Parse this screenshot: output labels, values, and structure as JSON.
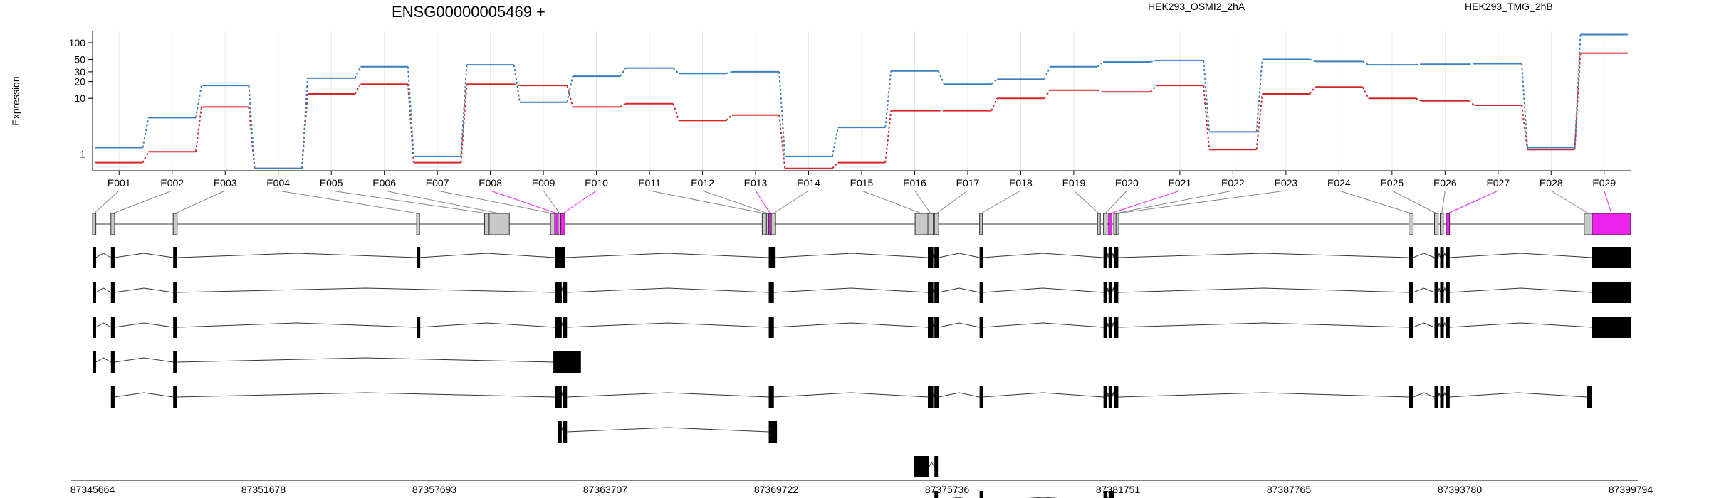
{
  "chart_data": {
    "type": "line",
    "title": "ENSG00000005469 +",
    "ylabel": "Expression",
    "yscale": "log",
    "ylim": [
      0.5,
      160
    ],
    "yticks": [
      1,
      10,
      20,
      30,
      50,
      100
    ],
    "ytick_labels": [
      "1",
      "10",
      "20",
      "30",
      "50",
      "100"
    ],
    "categories": [
      "E001",
      "E002",
      "E003",
      "E004",
      "E005",
      "E006",
      "E007",
      "E008",
      "E009",
      "E010",
      "E011",
      "E012",
      "E013",
      "E014",
      "E015",
      "E016",
      "E017",
      "E018",
      "E019",
      "E020",
      "E021",
      "E022",
      "E023",
      "E024",
      "E025",
      "E026",
      "E027",
      "E028",
      "E029"
    ],
    "series": [
      {
        "name": "HEK293_OSMI2_2hA",
        "color": "#d62728",
        "values": [
          0.7,
          1.1,
          7,
          0.55,
          12,
          18,
          0.7,
          18,
          17,
          7,
          8,
          4,
          5,
          0.55,
          0.7,
          6,
          6,
          10,
          14,
          13,
          17,
          1.2,
          12,
          16,
          10,
          9,
          7.5,
          1.2,
          65
        ]
      },
      {
        "name": "HEK293_TMG_2hB",
        "color": "#3a7ebf",
        "values": [
          1.3,
          4.5,
          17,
          0.55,
          23,
          37,
          0.9,
          40,
          8.5,
          25,
          35,
          28,
          30,
          0.9,
          3,
          31,
          18,
          22,
          37,
          45,
          48,
          2.5,
          50,
          46,
          40,
          41,
          42,
          1.3,
          140
        ]
      }
    ],
    "highlight_color": "#ee22ee",
    "exon_fill": "#c8c8c8",
    "highlighted_exons": [
      "E008",
      "E010",
      "E013",
      "E021",
      "E027",
      "E029"
    ],
    "genomic_axis": {
      "start": 87345664,
      "end": 87399794,
      "tick_labels": [
        "87345664",
        "87351678",
        "87357693",
        "87363707",
        "87369722",
        "87375736",
        "87381751",
        "87387765",
        "87393780",
        "87399794"
      ]
    },
    "exon_bins": [
      {
        "id": "E001",
        "start": 87345664,
        "end": 87345780
      },
      {
        "id": "E002",
        "start": 87346310,
        "end": 87346440
      },
      {
        "id": "E003",
        "start": 87348500,
        "end": 87348640
      },
      {
        "id": "E004",
        "start": 87357070,
        "end": 87357140
      },
      {
        "id": "E005",
        "start": 87359460,
        "end": 87359620
      },
      {
        "id": "E006",
        "start": 87359620,
        "end": 87360330
      },
      {
        "id": "E007",
        "start": 87361780,
        "end": 87361930
      },
      {
        "id": "E008",
        "start": 87361930,
        "end": 87362070
      },
      {
        "id": "E009",
        "start": 87362050,
        "end": 87362140
      },
      {
        "id": "E010",
        "start": 87362140,
        "end": 87362290
      },
      {
        "id": "E011",
        "start": 87369230,
        "end": 87369380
      },
      {
        "id": "E012",
        "start": 87369380,
        "end": 87369460
      },
      {
        "id": "E013",
        "start": 87369460,
        "end": 87369550
      },
      {
        "id": "E014",
        "start": 87369550,
        "end": 87369700
      },
      {
        "id": "E015",
        "start": 87374610,
        "end": 87375060
      },
      {
        "id": "E016",
        "start": 87375060,
        "end": 87375250
      },
      {
        "id": "E017",
        "start": 87375290,
        "end": 87375440
      },
      {
        "id": "E018",
        "start": 87376880,
        "end": 87376980
      },
      {
        "id": "E019",
        "start": 87381030,
        "end": 87381130
      },
      {
        "id": "E020",
        "start": 87381240,
        "end": 87381370
      },
      {
        "id": "E021",
        "start": 87381420,
        "end": 87381540
      },
      {
        "id": "E022",
        "start": 87381600,
        "end": 87381680
      },
      {
        "id": "E023",
        "start": 87381680,
        "end": 87381760
      },
      {
        "id": "E024",
        "start": 87391990,
        "end": 87392140
      },
      {
        "id": "E025",
        "start": 87392890,
        "end": 87393020
      },
      {
        "id": "E026",
        "start": 87393090,
        "end": 87393200
      },
      {
        "id": "E027",
        "start": 87393300,
        "end": 87393420
      },
      {
        "id": "E028",
        "start": 87398160,
        "end": 87398440
      },
      {
        "id": "E029",
        "start": 87398440,
        "end": 87399794
      }
    ],
    "transcripts": [
      [
        [
          87345664,
          87345780
        ],
        [
          87346310,
          87346440
        ],
        [
          87348500,
          87348640
        ],
        [
          87357070,
          87357140
        ],
        [
          87361930,
          87362070
        ],
        [
          87362050,
          87362290
        ],
        [
          87369460,
          87369700
        ],
        [
          87375060,
          87375250
        ],
        [
          87375290,
          87375440
        ],
        [
          87376880,
          87376980
        ],
        [
          87381240,
          87381370
        ],
        [
          87381420,
          87381540
        ],
        [
          87381600,
          87381760
        ],
        [
          87391990,
          87392140
        ],
        [
          87392890,
          87393020
        ],
        [
          87393090,
          87393200
        ],
        [
          87393300,
          87393420
        ],
        [
          87398440,
          87399794
        ]
      ],
      [
        [
          87345664,
          87345780
        ],
        [
          87346310,
          87346440
        ],
        [
          87348500,
          87348640
        ],
        [
          87361930,
          87362070
        ],
        [
          87362050,
          87362140
        ],
        [
          87362220,
          87362360
        ],
        [
          87369460,
          87369640
        ],
        [
          87375060,
          87375250
        ],
        [
          87375290,
          87375440
        ],
        [
          87376880,
          87376980
        ],
        [
          87381240,
          87381370
        ],
        [
          87381420,
          87381540
        ],
        [
          87381620,
          87381760
        ],
        [
          87391990,
          87392140
        ],
        [
          87392890,
          87393020
        ],
        [
          87393090,
          87393200
        ],
        [
          87393300,
          87393420
        ],
        [
          87398440,
          87399794
        ]
      ],
      [
        [
          87345664,
          87345780
        ],
        [
          87346310,
          87346440
        ],
        [
          87348500,
          87348640
        ],
        [
          87357070,
          87357140
        ],
        [
          87361930,
          87362070
        ],
        [
          87362050,
          87362140
        ],
        [
          87362220,
          87362360
        ],
        [
          87369460,
          87369640
        ],
        [
          87375060,
          87375250
        ],
        [
          87375290,
          87375440
        ],
        [
          87376880,
          87376980
        ],
        [
          87381240,
          87381370
        ],
        [
          87381420,
          87381540
        ],
        [
          87381620,
          87381760
        ],
        [
          87391990,
          87392140
        ],
        [
          87392890,
          87393020
        ],
        [
          87393090,
          87393200
        ],
        [
          87393300,
          87393420
        ],
        [
          87398440,
          87399794
        ]
      ],
      [
        [
          87345664,
          87345780
        ],
        [
          87346310,
          87346440
        ],
        [
          87348500,
          87348640
        ],
        [
          87361880,
          87362850
        ]
      ],
      [
        [
          87346310,
          87346440
        ],
        [
          87348500,
          87348640
        ],
        [
          87361930,
          87362070
        ],
        [
          87362050,
          87362140
        ],
        [
          87362220,
          87362360
        ],
        [
          87369460,
          87369640
        ],
        [
          87375060,
          87375250
        ],
        [
          87375290,
          87375440
        ],
        [
          87376880,
          87376980
        ],
        [
          87381240,
          87381370
        ],
        [
          87381420,
          87381540
        ],
        [
          87381620,
          87381760
        ],
        [
          87391990,
          87392140
        ],
        [
          87392890,
          87393020
        ],
        [
          87393090,
          87393200
        ],
        [
          87393300,
          87393420
        ],
        [
          87398250,
          87398440
        ]
      ],
      [
        [
          87362050,
          87362140
        ],
        [
          87362220,
          87362360
        ],
        [
          87369460,
          87369750
        ]
      ],
      [
        [
          87374580,
          87375100
        ],
        [
          87375290,
          87375360
        ]
      ],
      [
        [
          87375290,
          87375360
        ],
        [
          87376880,
          87376980
        ],
        [
          87381240,
          87381370
        ],
        [
          87381420,
          87381620
        ]
      ]
    ]
  }
}
